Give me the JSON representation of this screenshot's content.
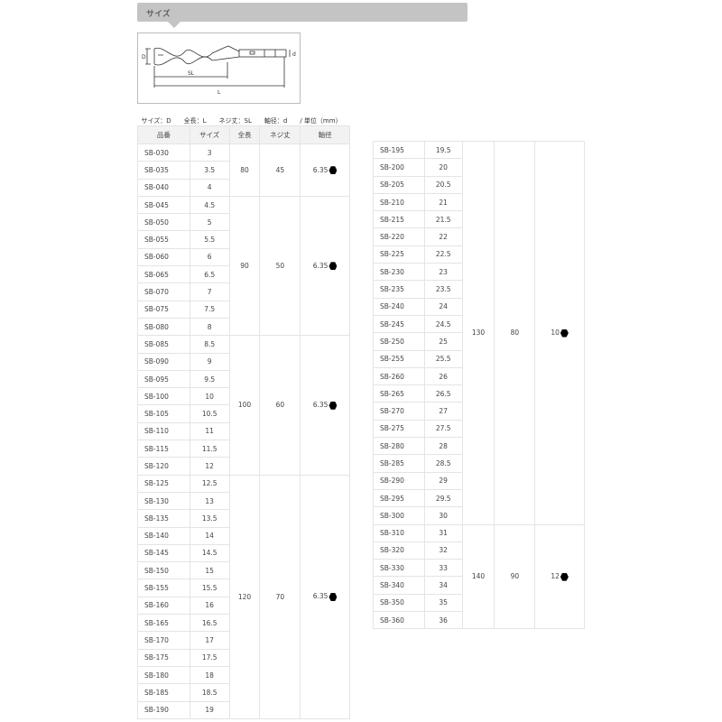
{
  "section_title": "サイズ",
  "diagram_labels": {
    "D": "D",
    "SL": "SL",
    "L": "L",
    "d": "d"
  },
  "legend": [
    "サイズ：D",
    "全長：L",
    "ネジ丈：SL",
    "軸径：d",
    "/ 単位（mm）"
  ],
  "headers": [
    "品番",
    "サイズ",
    "全長",
    "ネジ丈",
    "軸径"
  ],
  "shank_icon": "hexagon-icon",
  "left_table": [
    {
      "length": "80",
      "thread": "45",
      "shaft": "6.35",
      "rows": [
        [
          "SB-030",
          "3"
        ],
        [
          "SB-035",
          "3.5"
        ],
        [
          "SB-040",
          "4"
        ]
      ]
    },
    {
      "length": "90",
      "thread": "50",
      "shaft": "6.35",
      "rows": [
        [
          "SB-045",
          "4.5"
        ],
        [
          "SB-050",
          "5"
        ],
        [
          "SB-055",
          "5.5"
        ],
        [
          "SB-060",
          "6"
        ],
        [
          "SB-065",
          "6.5"
        ],
        [
          "SB-070",
          "7"
        ],
        [
          "SB-075",
          "7.5"
        ],
        [
          "SB-080",
          "8"
        ]
      ]
    },
    {
      "length": "100",
      "thread": "60",
      "shaft": "6.35",
      "rows": [
        [
          "SB-085",
          "8.5"
        ],
        [
          "SB-090",
          "9"
        ],
        [
          "SB-095",
          "9.5"
        ],
        [
          "SB-100",
          "10"
        ],
        [
          "SB-105",
          "10.5"
        ],
        [
          "SB-110",
          "11"
        ],
        [
          "SB-115",
          "11.5"
        ],
        [
          "SB-120",
          "12"
        ]
      ]
    },
    {
      "length": "120",
      "thread": "70",
      "shaft": "6.35",
      "rows": [
        [
          "SB-125",
          "12.5"
        ],
        [
          "SB-130",
          "13"
        ],
        [
          "SB-135",
          "13.5"
        ],
        [
          "SB-140",
          "14"
        ],
        [
          "SB-145",
          "14.5"
        ],
        [
          "SB-150",
          "15"
        ],
        [
          "SB-155",
          "15.5"
        ],
        [
          "SB-160",
          "16"
        ],
        [
          "SB-165",
          "16.5"
        ],
        [
          "SB-170",
          "17"
        ],
        [
          "SB-175",
          "17.5"
        ],
        [
          "SB-180",
          "18"
        ],
        [
          "SB-185",
          "18.5"
        ],
        [
          "SB-190",
          "19"
        ]
      ]
    }
  ],
  "right_table": [
    {
      "length": "130",
      "thread": "80",
      "shaft": "10",
      "rows": [
        [
          "SB-195",
          "19.5"
        ],
        [
          "SB-200",
          "20"
        ],
        [
          "SB-205",
          "20.5"
        ],
        [
          "SB-210",
          "21"
        ],
        [
          "SB-215",
          "21.5"
        ],
        [
          "SB-220",
          "22"
        ],
        [
          "SB-225",
          "22.5"
        ],
        [
          "SB-230",
          "23"
        ],
        [
          "SB-235",
          "23.5"
        ],
        [
          "SB-240",
          "24"
        ],
        [
          "SB-245",
          "24.5"
        ],
        [
          "SB-250",
          "25"
        ],
        [
          "SB-255",
          "25.5"
        ],
        [
          "SB-260",
          "26"
        ],
        [
          "SB-265",
          "26.5"
        ],
        [
          "SB-270",
          "27"
        ],
        [
          "SB-275",
          "27.5"
        ],
        [
          "SB-280",
          "28"
        ],
        [
          "SB-285",
          "28.5"
        ],
        [
          "SB-290",
          "29"
        ],
        [
          "SB-295",
          "29.5"
        ],
        [
          "SB-300",
          "30"
        ]
      ]
    },
    {
      "length": "140",
      "thread": "90",
      "shaft": "12",
      "rows": [
        [
          "SB-310",
          "31"
        ],
        [
          "SB-320",
          "32"
        ],
        [
          "SB-330",
          "33"
        ],
        [
          "SB-340",
          "34"
        ],
        [
          "SB-350",
          "35"
        ],
        [
          "SB-360",
          "36"
        ]
      ]
    }
  ]
}
